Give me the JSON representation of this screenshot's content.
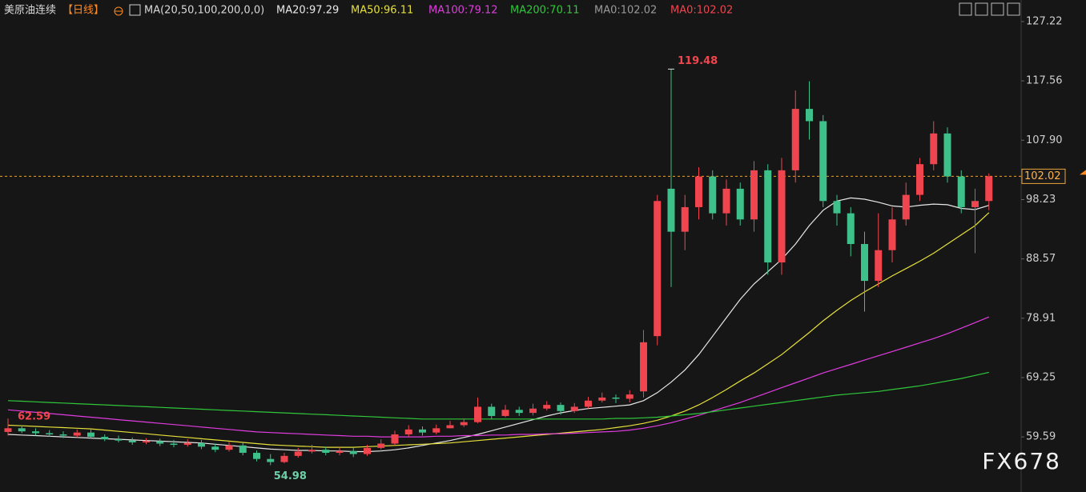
{
  "chart_data": {
    "type": "candlestick",
    "title": "美原油连续",
    "period": "【日线】",
    "indicator": "MA(20,50,100,200,0,0)",
    "watermark": "FX678",
    "up_color": "#f0454f",
    "down_color": "#3ec08a",
    "ylim": [
      50.62,
      130.73
    ],
    "yticks": [
      127.22,
      117.56,
      {
        "value": 107.9,
        "label": "107.90"
      },
      98.23,
      88.57,
      78.91,
      69.25,
      59.59
    ],
    "open": [
      60.4,
      61,
      60.5,
      60.2,
      60,
      59.8,
      60.3,
      59.6,
      59.2,
      59,
      58.7,
      58.9,
      58.5,
      58.3,
      58.6,
      58,
      57.5,
      58.2,
      57,
      56,
      55.5,
      56.5,
      57.2,
      57.5,
      57,
      57.3,
      56.8,
      57.8,
      58.5,
      60,
      60.8,
      60.3,
      61,
      61.5,
      62,
      64.5,
      63,
      64,
      63.5,
      64.2,
      64.8,
      63.8,
      64.5,
      65.5,
      66,
      65.8,
      67,
      76,
      100,
      93,
      97,
      102,
      96,
      100,
      95,
      103,
      88,
      103,
      113,
      111,
      98,
      96,
      91,
      85,
      90,
      95,
      99,
      104,
      109,
      102,
      97,
      98
    ],
    "high": [
      62.59,
      61.5,
      61,
      60.7,
      60.5,
      60.8,
      60.9,
      60,
      59.8,
      59.5,
      59.4,
      59.3,
      59.1,
      59.2,
      59.1,
      58.5,
      58.8,
      58.6,
      57.4,
      56.8,
      57,
      57.8,
      58.3,
      58,
      57.9,
      57.8,
      58.3,
      59.2,
      60.6,
      61.5,
      61.3,
      61.6,
      62.2,
      62.6,
      66,
      65,
      64.8,
      64.5,
      65,
      65.4,
      65.2,
      65.1,
      66.1,
      66.8,
      66.5,
      67.2,
      77,
      99,
      119.48,
      99,
      103.5,
      103,
      101.5,
      101,
      104.5,
      104,
      105,
      116,
      117.5,
      112,
      99,
      97,
      93,
      96,
      97,
      101,
      105,
      111,
      110,
      103,
      100,
      102.5
    ],
    "low": [
      59.8,
      60.2,
      59.8,
      59.6,
      59.4,
      59.5,
      59.3,
      58.9,
      58.7,
      58.3,
      58.4,
      58.1,
      57.9,
      58,
      57.6,
      57.1,
      57.2,
      56.6,
      55.6,
      54.98,
      55.3,
      56.2,
      56.9,
      56.6,
      56.6,
      56.3,
      56.5,
      57.5,
      58.2,
      59.6,
      59.8,
      60,
      61,
      61.2,
      61.8,
      62.5,
      62.8,
      63,
      63.1,
      63.9,
      63.2,
      63.5,
      64.2,
      65.2,
      65.1,
      65.2,
      66,
      74.5,
      84,
      90,
      95,
      95,
      94,
      94,
      93,
      86,
      86,
      101,
      108,
      97,
      94,
      89,
      80,
      84,
      88,
      94,
      98,
      103,
      101,
      96,
      89.5,
      96.5
    ],
    "close": [
      61,
      60.5,
      60.2,
      60,
      59.8,
      60.3,
      59.6,
      59.2,
      59,
      58.7,
      58.9,
      58.5,
      58.3,
      58.6,
      58,
      57.5,
      58.2,
      57,
      56,
      55.5,
      56.5,
      57.2,
      57.5,
      57,
      57.3,
      56.8,
      57.8,
      58.5,
      60,
      60.8,
      60.3,
      61,
      61.5,
      62,
      64.5,
      63,
      64,
      63.5,
      64.2,
      64.8,
      63.8,
      64.5,
      65.5,
      66,
      65.8,
      66.5,
      75,
      98,
      93,
      97,
      102,
      96,
      100,
      95,
      103,
      88,
      103,
      113,
      111,
      98,
      96,
      91,
      85,
      90,
      95,
      99,
      104,
      109,
      102,
      97,
      98,
      102.02
    ],
    "ma_series": [
      {
        "name": "MA20:97.29",
        "color": "#e8e8e8",
        "values": [
          60,
          59.9,
          59.8,
          59.7,
          59.6,
          59.5,
          59.4,
          59.3,
          59.2,
          59.1,
          59,
          58.9,
          58.8,
          58.7,
          58.6,
          58.4,
          58.2,
          58,
          57.8,
          57.6,
          57.5,
          57.4,
          57.4,
          57.3,
          57.3,
          57.2,
          57.2,
          57.3,
          57.5,
          57.8,
          58.2,
          58.6,
          59,
          59.5,
          60,
          60.6,
          61.2,
          61.8,
          62.4,
          63,
          63.5,
          63.9,
          64.2,
          64.4,
          64.6,
          64.8,
          65.5,
          66.8,
          68.5,
          70.5,
          73,
          76,
          79,
          82,
          84.5,
          86.5,
          88.5,
          91,
          94,
          96.5,
          98,
          98.5,
          98.3,
          97.8,
          97.2,
          97,
          97.3,
          97.5,
          97.4,
          96.8,
          96.6,
          97.29
        ]
      },
      {
        "name": "MA50:96.11",
        "color": "#e6e03a",
        "values": [
          61.5,
          61.4,
          61.3,
          61.2,
          61.1,
          61,
          60.9,
          60.7,
          60.5,
          60.3,
          60.1,
          59.9,
          59.7,
          59.5,
          59.3,
          59.1,
          58.9,
          58.7,
          58.5,
          58.3,
          58.2,
          58.1,
          58,
          57.9,
          57.9,
          57.9,
          58,
          58.1,
          58.2,
          58.3,
          58.4,
          58.5,
          58.6,
          58.8,
          59,
          59.2,
          59.4,
          59.6,
          59.8,
          60,
          60.2,
          60.4,
          60.6,
          60.8,
          61.1,
          61.4,
          61.8,
          62.3,
          63,
          63.8,
          64.8,
          66,
          67.3,
          68.7,
          70,
          71.5,
          73,
          74.8,
          76.6,
          78.5,
          80.2,
          81.8,
          83.2,
          84.5,
          85.8,
          87,
          88.2,
          89.5,
          91,
          92.5,
          94,
          96.11
        ]
      },
      {
        "name": "MA100:79.12",
        "color": "#e03ce0",
        "values": [
          64,
          63.8,
          63.6,
          63.4,
          63.2,
          63,
          62.8,
          62.6,
          62.4,
          62.2,
          62,
          61.8,
          61.6,
          61.4,
          61.2,
          61,
          60.8,
          60.6,
          60.4,
          60.3,
          60.2,
          60.1,
          60,
          59.9,
          59.8,
          59.7,
          59.7,
          59.6,
          59.6,
          59.6,
          59.6,
          59.7,
          59.7,
          59.8,
          59.8,
          59.9,
          59.9,
          60,
          60,
          60.1,
          60.1,
          60.2,
          60.3,
          60.4,
          60.5,
          60.7,
          61,
          61.4,
          61.9,
          62.5,
          63.1,
          63.8,
          64.5,
          65.2,
          66,
          66.8,
          67.6,
          68.4,
          69.2,
          70,
          70.7,
          71.4,
          72.1,
          72.8,
          73.5,
          74.2,
          74.9,
          75.6,
          76.4,
          77.3,
          78.2,
          79.12
        ]
      },
      {
        "name": "MA200:70.11",
        "color": "#2fc83a",
        "values": [
          65.5,
          65.4,
          65.3,
          65.2,
          65.1,
          65,
          64.9,
          64.8,
          64.7,
          64.6,
          64.5,
          64.4,
          64.3,
          64.2,
          64.1,
          64,
          63.9,
          63.8,
          63.7,
          63.6,
          63.5,
          63.4,
          63.3,
          63.2,
          63.1,
          63,
          62.9,
          62.8,
          62.7,
          62.6,
          62.5,
          62.5,
          62.5,
          62.5,
          62.5,
          62.5,
          62.5,
          62.5,
          62.5,
          62.5,
          62.5,
          62.5,
          62.5,
          62.5,
          62.6,
          62.6,
          62.7,
          62.8,
          63,
          63.2,
          63.4,
          63.7,
          64,
          64.3,
          64.6,
          64.9,
          65.2,
          65.5,
          65.8,
          66.1,
          66.4,
          66.6,
          66.8,
          67,
          67.3,
          67.6,
          67.9,
          68.3,
          68.7,
          69.1,
          69.6,
          70.11
        ]
      }
    ],
    "legend_extra": [
      {
        "name": "MA0:102.02",
        "color": "#9a9a9a"
      },
      {
        "name": "MA0:102.02",
        "color": "#f0454f"
      }
    ]
  }
}
